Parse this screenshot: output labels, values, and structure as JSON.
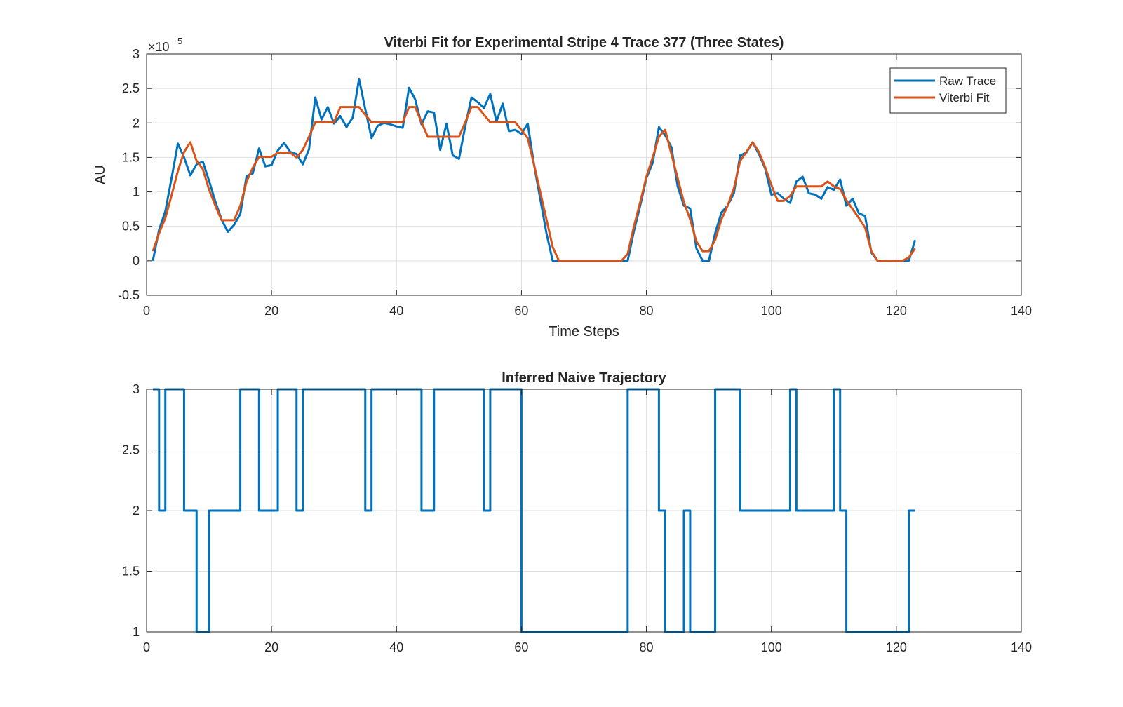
{
  "chart_data": [
    {
      "type": "line",
      "title": "Viterbi Fit for Experimental Stripe 4 Trace 377 (Three States)",
      "xlabel": "Time Steps",
      "ylabel": "AU",
      "exponent_label": "×10",
      "exponent_power": "5",
      "xlim": [
        0,
        140
      ],
      "ylim": [
        -0.5,
        3
      ],
      "y_scale_factor": 100000,
      "grid": true,
      "legend_position": "top-right",
      "x_ticks": [
        "0",
        "20",
        "40",
        "60",
        "80",
        "100",
        "120",
        "140"
      ],
      "y_ticks": [
        "-0.5",
        "0",
        "0.5",
        "1",
        "1.5",
        "2",
        "2.5",
        "3"
      ],
      "series": [
        {
          "name": "Raw Trace",
          "color": "#0072BD",
          "x": [
            1,
            2,
            3,
            4,
            5,
            6,
            7,
            8,
            9,
            10,
            11,
            12,
            13,
            14,
            15,
            16,
            17,
            18,
            19,
            20,
            21,
            22,
            23,
            24,
            25,
            26,
            27,
            28,
            29,
            30,
            31,
            32,
            33,
            34,
            35,
            36,
            37,
            38,
            39,
            40,
            41,
            42,
            43,
            44,
            45,
            46,
            47,
            48,
            49,
            50,
            51,
            52,
            53,
            54,
            55,
            56,
            57,
            58,
            59,
            60,
            61,
            62,
            63,
            64,
            65,
            66,
            67,
            68,
            69,
            70,
            71,
            72,
            73,
            74,
            75,
            76,
            77,
            78,
            79,
            80,
            81,
            82,
            83,
            84,
            85,
            86,
            87,
            88,
            89,
            90,
            91,
            92,
            93,
            94,
            95,
            96,
            97,
            98,
            99,
            100,
            101,
            102,
            103,
            104,
            105,
            106,
            107,
            108,
            109,
            110,
            111,
            112,
            113,
            114,
            115,
            116,
            117,
            118,
            119,
            120,
            121,
            122,
            123
          ],
          "values": [
            0.0,
            0.45,
            0.72,
            1.2,
            1.7,
            1.5,
            1.24,
            1.4,
            1.44,
            1.16,
            0.86,
            0.6,
            0.42,
            0.52,
            0.68,
            1.23,
            1.27,
            1.63,
            1.37,
            1.39,
            1.6,
            1.71,
            1.58,
            1.55,
            1.4,
            1.62,
            2.37,
            2.05,
            2.23,
            1.99,
            2.1,
            1.94,
            2.08,
            2.64,
            2.2,
            1.78,
            1.96,
            2.0,
            1.98,
            1.95,
            1.93,
            2.51,
            2.34,
            1.98,
            2.17,
            2.15,
            1.61,
            1.99,
            1.53,
            1.48,
            1.95,
            2.37,
            2.3,
            2.22,
            2.42,
            2.02,
            2.28,
            1.88,
            1.9,
            1.84,
            1.99,
            1.4,
            0.9,
            0.4,
            0.0,
            0.0,
            0.0,
            0.0,
            0.0,
            0.0,
            0.0,
            0.0,
            0.0,
            0.0,
            0.0,
            0.0,
            0.0,
            0.43,
            0.8,
            1.2,
            1.42,
            1.94,
            1.82,
            1.65,
            1.08,
            0.8,
            0.76,
            0.18,
            0.0,
            0.0,
            0.4,
            0.7,
            0.8,
            0.98,
            1.53,
            1.57,
            1.72,
            1.55,
            1.34,
            0.96,
            0.98,
            0.9,
            0.84,
            1.15,
            1.22,
            0.98,
            0.96,
            0.9,
            1.07,
            1.03,
            1.18,
            0.8,
            0.9,
            0.69,
            0.65,
            0.12,
            0.0,
            0.0,
            0.0,
            0.0,
            0.0,
            0.0,
            0.3
          ]
        },
        {
          "name": "Viterbi Fit",
          "color": "#D95319",
          "x": [
            1,
            2,
            3,
            4,
            5,
            6,
            7,
            8,
            9,
            10,
            11,
            12,
            13,
            14,
            15,
            16,
            17,
            18,
            19,
            20,
            21,
            22,
            23,
            24,
            25,
            26,
            27,
            28,
            29,
            30,
            31,
            32,
            33,
            34,
            35,
            36,
            37,
            38,
            39,
            40,
            41,
            42,
            43,
            44,
            45,
            46,
            47,
            48,
            49,
            50,
            51,
            52,
            53,
            54,
            55,
            56,
            57,
            58,
            59,
            60,
            61,
            62,
            63,
            64,
            65,
            66,
            67,
            68,
            69,
            70,
            71,
            72,
            73,
            74,
            75,
            76,
            77,
            78,
            79,
            80,
            81,
            82,
            83,
            84,
            85,
            86,
            87,
            88,
            89,
            90,
            91,
            92,
            93,
            94,
            95,
            96,
            97,
            98,
            99,
            100,
            101,
            102,
            103,
            104,
            105,
            106,
            107,
            108,
            109,
            110,
            111,
            112,
            113,
            114,
            115,
            116,
            117,
            118,
            119,
            120,
            121,
            122,
            123
          ],
          "values": [
            0.14,
            0.4,
            0.62,
            0.95,
            1.3,
            1.58,
            1.72,
            1.45,
            1.33,
            1.03,
            0.8,
            0.59,
            0.59,
            0.59,
            0.8,
            1.15,
            1.35,
            1.51,
            1.51,
            1.51,
            1.57,
            1.57,
            1.57,
            1.5,
            1.61,
            1.8,
            2.01,
            2.01,
            2.01,
            2.01,
            2.23,
            2.23,
            2.23,
            2.23,
            2.12,
            2.01,
            2.01,
            2.01,
            2.01,
            2.01,
            2.01,
            2.23,
            2.23,
            2.01,
            1.8,
            1.8,
            1.8,
            1.8,
            1.8,
            1.8,
            2.01,
            2.23,
            2.23,
            2.12,
            2.01,
            2.01,
            2.01,
            2.01,
            2.01,
            1.9,
            1.78,
            1.4,
            1.0,
            0.6,
            0.2,
            0.0,
            0.0,
            0.0,
            0.0,
            0.0,
            0.0,
            0.0,
            0.0,
            0.0,
            0.0,
            0.0,
            0.1,
            0.5,
            0.85,
            1.22,
            1.5,
            1.8,
            1.9,
            1.55,
            1.2,
            0.85,
            0.6,
            0.28,
            0.14,
            0.14,
            0.3,
            0.6,
            0.8,
            1.05,
            1.45,
            1.58,
            1.72,
            1.58,
            1.36,
            1.1,
            0.87,
            0.87,
            0.94,
            1.08,
            1.08,
            1.08,
            1.08,
            1.08,
            1.15,
            1.08,
            1.04,
            0.88,
            0.75,
            0.62,
            0.48,
            0.14,
            0.0,
            0.0,
            0.0,
            0.0,
            0.0,
            0.05,
            0.18
          ]
        }
      ]
    },
    {
      "type": "line",
      "title": "Inferred Naive Trajectory",
      "xlabel": "",
      "ylabel": "",
      "xlim": [
        0,
        140
      ],
      "ylim": [
        1,
        3
      ],
      "grid": true,
      "x_ticks": [
        "0",
        "20",
        "40",
        "60",
        "80",
        "100",
        "120",
        "140"
      ],
      "y_ticks": [
        "1",
        "1.5",
        "2",
        "2.5",
        "3"
      ],
      "series": [
        {
          "color": "#0072BD",
          "step": true,
          "x": [
            1,
            2,
            3,
            4,
            5,
            6,
            7,
            8,
            9,
            10,
            11,
            12,
            13,
            14,
            15,
            16,
            17,
            18,
            19,
            20,
            21,
            22,
            23,
            24,
            25,
            26,
            27,
            28,
            29,
            30,
            31,
            32,
            33,
            34,
            35,
            36,
            37,
            38,
            39,
            40,
            41,
            42,
            43,
            44,
            45,
            46,
            47,
            48,
            49,
            50,
            51,
            52,
            53,
            54,
            55,
            56,
            57,
            58,
            59,
            60,
            61,
            62,
            63,
            64,
            65,
            66,
            67,
            68,
            69,
            70,
            71,
            72,
            73,
            74,
            75,
            76,
            77,
            78,
            79,
            80,
            81,
            82,
            83,
            84,
            85,
            86,
            87,
            88,
            89,
            90,
            91,
            92,
            93,
            94,
            95,
            96,
            97,
            98,
            99,
            100,
            101,
            102,
            103,
            104,
            105,
            106,
            107,
            108,
            109,
            110,
            111,
            112,
            113,
            114,
            115,
            116,
            117,
            118,
            119,
            120,
            121,
            122,
            123
          ],
          "values": [
            3,
            2,
            3,
            3,
            3,
            2,
            2,
            1,
            1,
            2,
            2,
            2,
            2,
            2,
            3,
            3,
            3,
            2,
            2,
            2,
            3,
            3,
            3,
            2,
            3,
            3,
            3,
            3,
            3,
            3,
            3,
            3,
            3,
            3,
            2,
            3,
            3,
            3,
            3,
            3,
            3,
            3,
            3,
            2,
            2,
            3,
            3,
            3,
            3,
            3,
            3,
            3,
            3,
            2,
            3,
            3,
            3,
            3,
            3,
            1,
            1,
            1,
            1,
            1,
            1,
            1,
            1,
            1,
            1,
            1,
            1,
            1,
            1,
            1,
            1,
            1,
            3,
            3,
            3,
            3,
            3,
            2,
            1,
            1,
            1,
            2,
            1,
            1,
            1,
            1,
            3,
            3,
            3,
            3,
            2,
            2,
            2,
            2,
            2,
            2,
            2,
            2,
            3,
            2,
            2,
            2,
            2,
            2,
            2,
            3,
            2,
            1,
            1,
            1,
            1,
            1,
            1,
            1,
            1,
            1,
            1,
            2,
            2
          ]
        }
      ]
    }
  ]
}
